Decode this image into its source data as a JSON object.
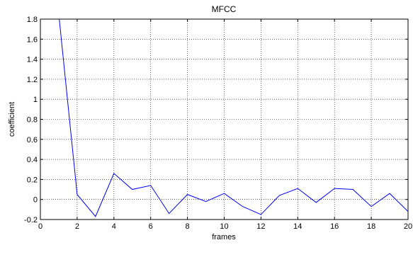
{
  "chart_data": {
    "type": "line",
    "title": "MFCC",
    "xlabel": "frames",
    "ylabel": "coefficient",
    "xlim": [
      0,
      20
    ],
    "ylim": [
      -0.2,
      1.8
    ],
    "xticks": [
      0,
      2,
      4,
      6,
      8,
      10,
      12,
      14,
      16,
      18,
      20
    ],
    "yticks": [
      -0.2,
      0,
      0.2,
      0.4,
      0.6,
      0.8,
      1,
      1.2,
      1.4,
      1.6,
      1.8
    ],
    "xtick_labels": [
      "0",
      "2",
      "4",
      "6",
      "8",
      "10",
      "12",
      "14",
      "16",
      "18",
      "20"
    ],
    "ytick_labels": [
      "-0.2",
      "0",
      "0.2",
      "0.4",
      "0.6",
      "0.8",
      "1",
      "1.2",
      "1.4",
      "1.6",
      "1.8"
    ],
    "grid": true,
    "series": [
      {
        "color": "#0000ff",
        "x": [
          1,
          2,
          3,
          4,
          5,
          6,
          7,
          8,
          9,
          10,
          11,
          12,
          13,
          14,
          15,
          16,
          17,
          18,
          19,
          20
        ],
        "y": [
          1.85,
          0.05,
          -0.17,
          0.26,
          0.1,
          0.14,
          -0.14,
          0.05,
          -0.02,
          0.06,
          -0.07,
          -0.15,
          0.04,
          0.11,
          -0.03,
          0.11,
          0.1,
          -0.07,
          0.06,
          -0.12
        ]
      }
    ]
  }
}
